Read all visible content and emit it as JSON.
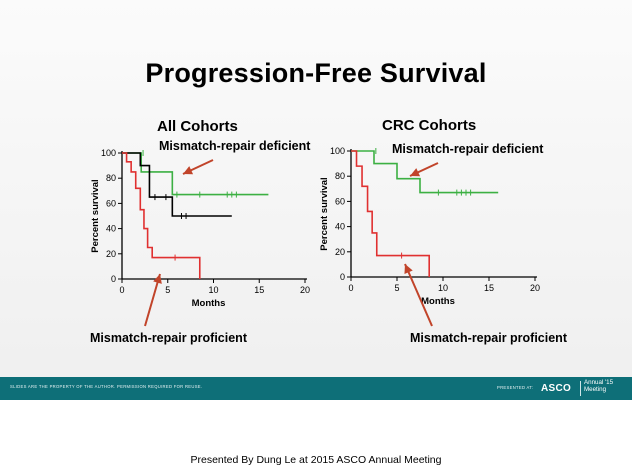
{
  "slide": {
    "title": "Progression-Free Survival",
    "footer_left": "SLIDES ARE THE PROPERTY OF THE AUTHOR. PERMISSION REQUIRED FOR REUSE.",
    "footer_presented": "PRESENTED AT:",
    "asco_logo_text": "ASCO",
    "asco_meeting_line1": "Annual '15",
    "asco_meeting_line2": "Meeting",
    "brand_color": "#0e6f78"
  },
  "caption": "Presented By Dung Le at 2015 ASCO Annual Meeting",
  "callouts": {
    "deficient": "Mismatch-repair deficient",
    "proficient": "Mismatch-repair proficient"
  },
  "chart_data": [
    {
      "type": "line",
      "title": "All Cohorts",
      "xlabel": "Months",
      "ylabel": "Percent survival",
      "xlim": [
        0,
        20
      ],
      "ylim": [
        0,
        100
      ],
      "xticks": [
        0,
        5,
        10,
        15,
        20
      ],
      "yticks": [
        0,
        20,
        40,
        60,
        80,
        100
      ],
      "series": [
        {
          "name": "Mismatch-repair deficient",
          "color": "#3cb043",
          "x": [
            0,
            2.1,
            2.1,
            5.5,
            5.5,
            16
          ],
          "y": [
            100,
            100,
            85,
            85,
            67,
            67
          ],
          "censored": [
            [
              2.3,
              100
            ],
            [
              6,
              67
            ],
            [
              8.5,
              67
            ],
            [
              11.5,
              67
            ],
            [
              12,
              67
            ],
            [
              12.5,
              67
            ]
          ]
        },
        {
          "name": "",
          "color": "#000000",
          "x": [
            0,
            2,
            2,
            3,
            3,
            5.5,
            5.5,
            12
          ],
          "y": [
            100,
            100,
            90,
            90,
            65,
            65,
            50,
            50
          ],
          "censored": [
            [
              3.6,
              65
            ],
            [
              4.8,
              65
            ],
            [
              6.5,
              50
            ],
            [
              7,
              50
            ]
          ]
        },
        {
          "name": "Mismatch-repair proficient",
          "color": "#e03030",
          "x": [
            0,
            0.5,
            0.5,
            1,
            1,
            1.5,
            1.5,
            2,
            2,
            2.4,
            2.4,
            2.8,
            2.8,
            3.3,
            3.3,
            8.5,
            8.5
          ],
          "y": [
            100,
            100,
            93,
            93,
            85,
            85,
            72,
            72,
            55,
            55,
            40,
            40,
            25,
            25,
            17,
            17,
            0
          ],
          "censored": [
            [
              5.8,
              17
            ]
          ]
        }
      ]
    },
    {
      "type": "line",
      "title": "CRC Cohorts",
      "xlabel": "Months",
      "ylabel": "Percent survival",
      "xlim": [
        0,
        20
      ],
      "ylim": [
        0,
        100
      ],
      "xticks": [
        0,
        5,
        10,
        15,
        20
      ],
      "yticks": [
        0,
        20,
        40,
        60,
        80,
        100
      ],
      "series": [
        {
          "name": "Mismatch-repair deficient",
          "color": "#3cb043",
          "x": [
            0,
            2.5,
            2.5,
            5,
            5,
            7.5,
            7.5,
            16
          ],
          "y": [
            100,
            100,
            90,
            90,
            78,
            78,
            67,
            67
          ],
          "censored": [
            [
              2.7,
              100
            ],
            [
              9.5,
              67
            ],
            [
              11.5,
              67
            ],
            [
              12,
              67
            ],
            [
              12.5,
              67
            ],
            [
              13,
              67
            ]
          ]
        },
        {
          "name": "Mismatch-repair proficient",
          "color": "#e03030",
          "x": [
            0,
            0.6,
            0.6,
            1.2,
            1.2,
            1.8,
            1.8,
            2.3,
            2.3,
            2.8,
            2.8,
            8.5,
            8.5
          ],
          "y": [
            100,
            100,
            88,
            88,
            72,
            72,
            52,
            52,
            35,
            35,
            17,
            17,
            0
          ],
          "censored": [
            [
              5.5,
              17
            ]
          ]
        }
      ]
    }
  ]
}
